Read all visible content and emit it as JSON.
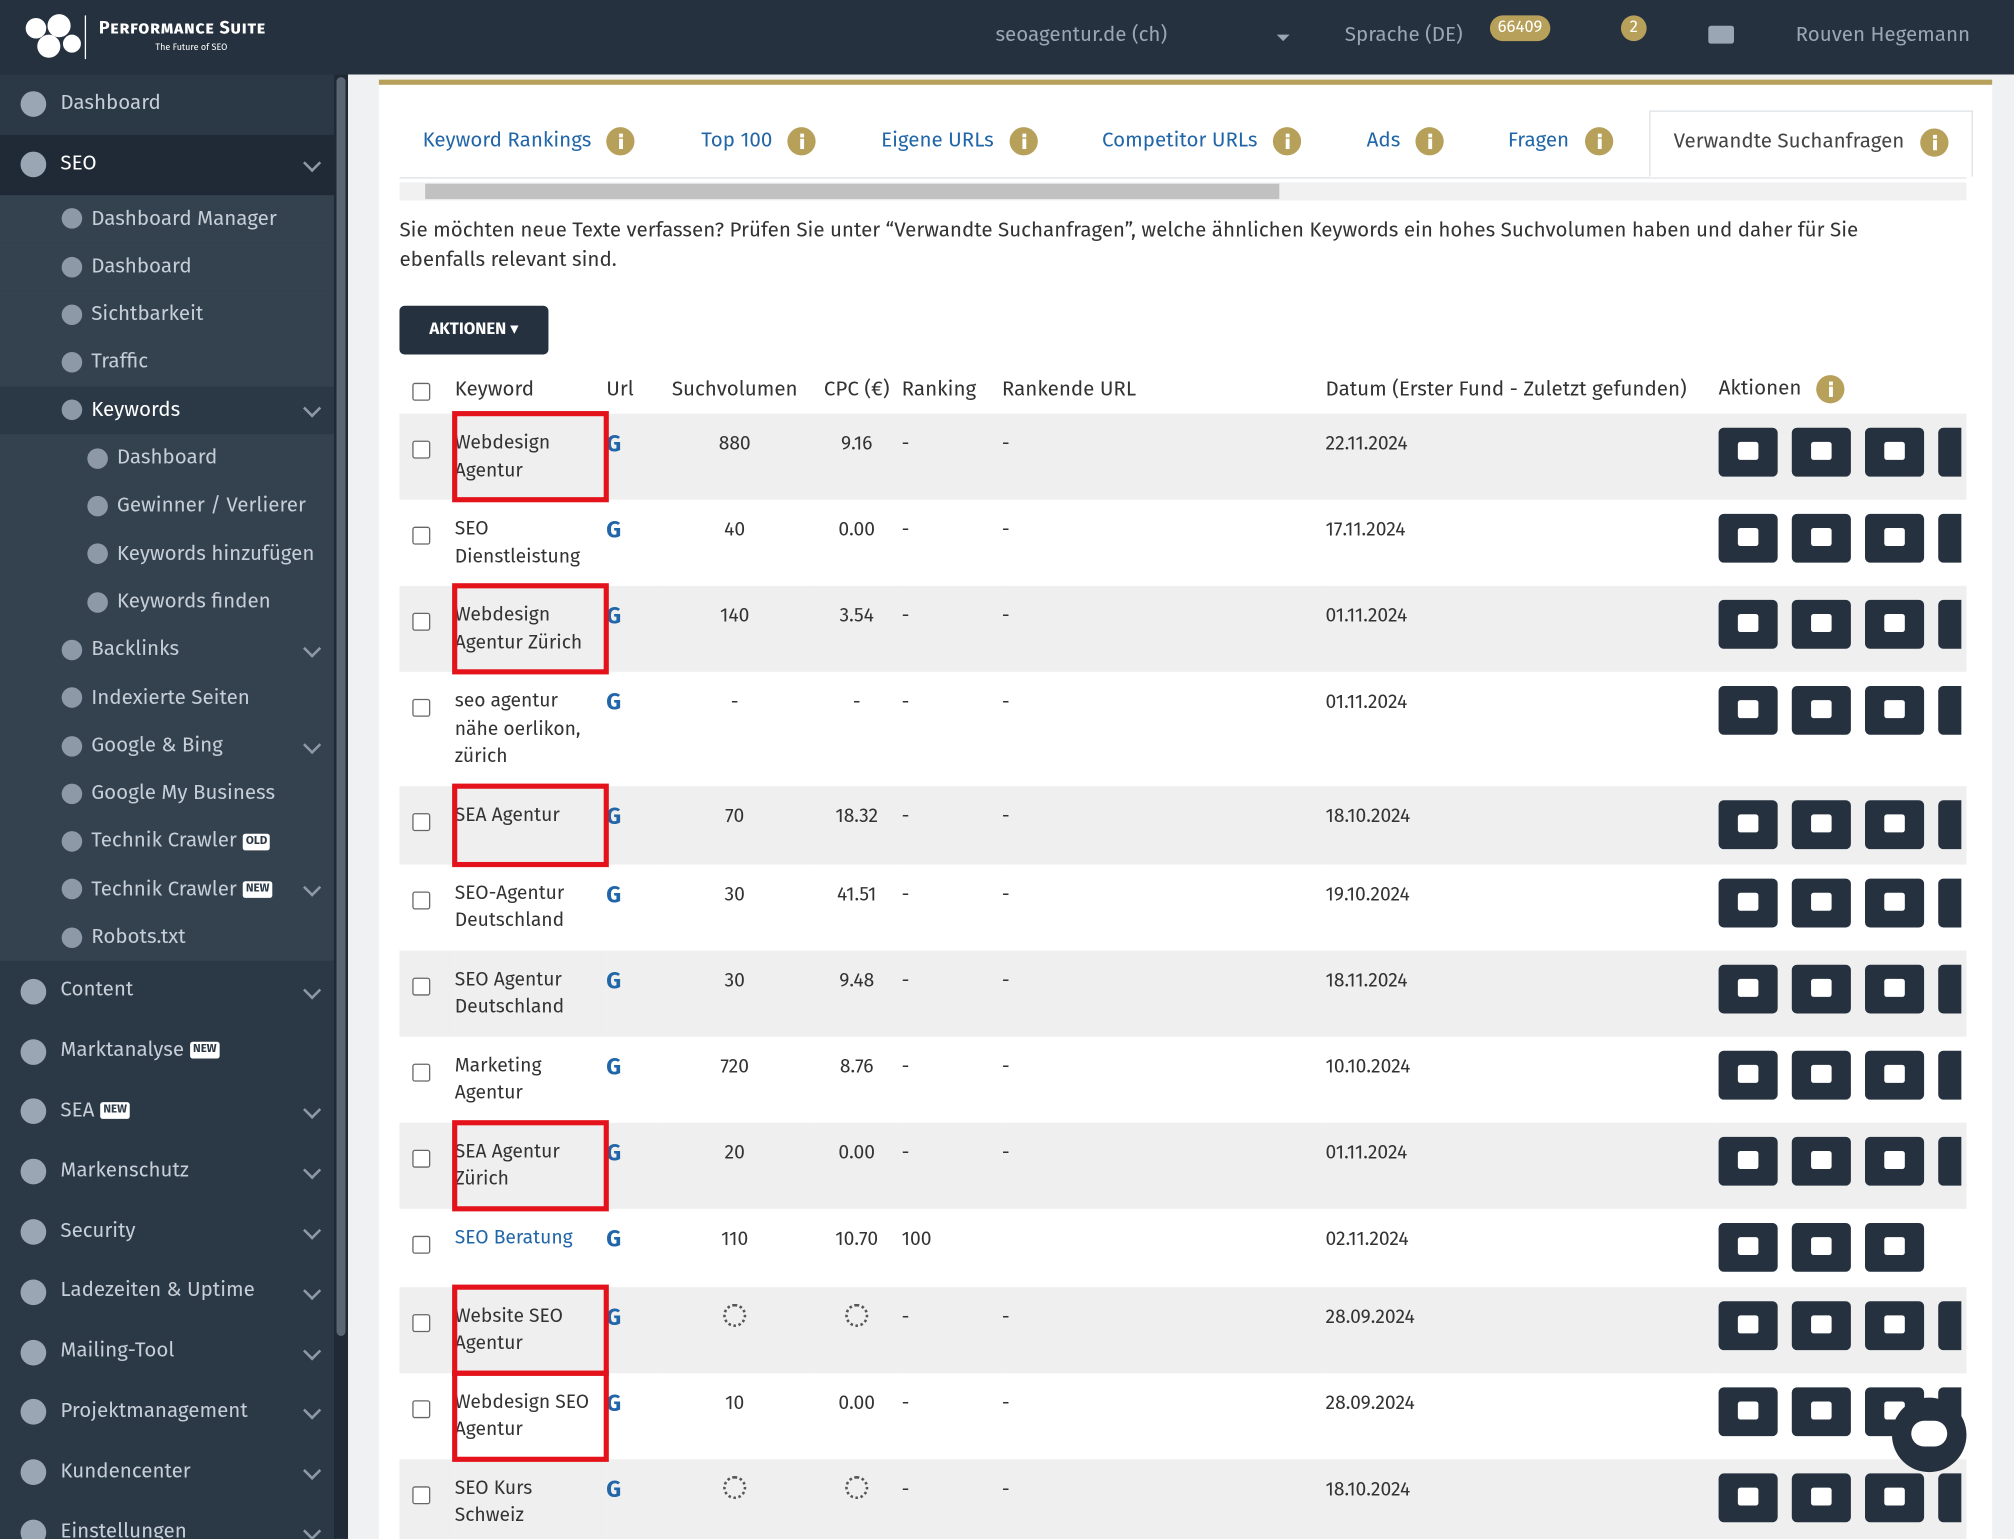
{
  "header": {
    "brand": "Performance Suite",
    "tagline": "The Future of SEO",
    "project": "seoagentur.de (ch)",
    "language": "Sprache (DE)",
    "credits": "66409",
    "notifications": "2",
    "user": "Rouven Hegemann"
  },
  "sidebar": [
    {
      "label": "Dashboard",
      "level": 0
    },
    {
      "label": "SEO",
      "level": 0,
      "open": true,
      "chevron": true
    },
    {
      "label": "Dashboard Manager",
      "level": 1
    },
    {
      "label": "Dashboard",
      "level": 1
    },
    {
      "label": "Sichtbarkeit",
      "level": 1
    },
    {
      "label": "Traffic",
      "level": 1
    },
    {
      "label": "Keywords",
      "level": 1,
      "active": true,
      "chevron": true
    },
    {
      "label": "Dashboard",
      "level": 2
    },
    {
      "label": "Gewinner / Verlierer",
      "level": 2
    },
    {
      "label": "Keywords hinzufügen",
      "level": 2
    },
    {
      "label": "Keywords finden",
      "level": 2
    },
    {
      "label": "Backlinks",
      "level": 1,
      "chevron": true
    },
    {
      "label": "Indexierte Seiten",
      "level": 1
    },
    {
      "label": "Google & Bing",
      "level": 1,
      "chevron": true
    },
    {
      "label": "Google My Business",
      "level": 1
    },
    {
      "label": "Technik Crawler",
      "level": 1,
      "badge": "OLD"
    },
    {
      "label": "Technik Crawler",
      "level": 1,
      "badge": "NEW",
      "chevron": true
    },
    {
      "label": "Robots.txt",
      "level": 1
    },
    {
      "label": "Content",
      "level": 0,
      "chevron": true
    },
    {
      "label": "Marktanalyse",
      "level": 0,
      "badge": "NEW"
    },
    {
      "label": "SEA",
      "level": 0,
      "badge": "NEW",
      "chevron": true
    },
    {
      "label": "Markenschutz",
      "level": 0,
      "chevron": true
    },
    {
      "label": "Security",
      "level": 0,
      "chevron": true
    },
    {
      "label": "Ladezeiten & Uptime",
      "level": 0,
      "chevron": true
    },
    {
      "label": "Mailing-Tool",
      "level": 0,
      "chevron": true
    },
    {
      "label": "Projektmanagement",
      "level": 0,
      "chevron": true
    },
    {
      "label": "Kundencenter",
      "level": 0,
      "chevron": true
    },
    {
      "label": "Einstellungen",
      "level": 0,
      "chevron": true
    }
  ],
  "tabs": [
    {
      "label": "Keyword Rankings"
    },
    {
      "label": "Top 100"
    },
    {
      "label": "Eigene URLs"
    },
    {
      "label": "Competitor URLs"
    },
    {
      "label": "Ads"
    },
    {
      "label": "Fragen"
    },
    {
      "label": "Verwandte Suchanfragen",
      "active": true
    }
  ],
  "description": "Sie möchten neue Texte verfassen? Prüfen Sie unter “Verwandte Suchanfragen”, welche ähnlichen Keywords ein hohes Suchvolumen haben und daher für Sie ebenfalls relevant sind.",
  "actions_button": "AKTIONEN",
  "table": {
    "columns": [
      "Keyword",
      "Url",
      "Suchvolumen",
      "CPC (€)",
      "Ranking",
      "Rankende URL",
      "Datum (Erster Fund - Zuletzt gefunden)",
      "Aktionen"
    ],
    "rows": [
      {
        "keyword": "Webdesign Agentur",
        "volume": "880",
        "cpc": "9.16",
        "ranking": "-",
        "url": "-",
        "date": "22.11.2024",
        "highlighted": true
      },
      {
        "keyword": "SEO Dienstleistung",
        "volume": "40",
        "cpc": "0.00",
        "ranking": "-",
        "url": "-",
        "date": "17.11.2024"
      },
      {
        "keyword": "Webdesign Agentur Zürich",
        "volume": "140",
        "cpc": "3.54",
        "ranking": "-",
        "url": "-",
        "date": "01.11.2024",
        "highlighted": true
      },
      {
        "keyword": "seo agentur nähe oerlikon, zürich",
        "volume": "-",
        "cpc": "-",
        "ranking": "-",
        "url": "-",
        "date": "01.11.2024"
      },
      {
        "keyword": "SEA Agentur",
        "volume": "70",
        "cpc": "18.32",
        "ranking": "-",
        "url": "-",
        "date": "18.10.2024",
        "highlighted": true
      },
      {
        "keyword": "SEO-Agentur Deutschland",
        "volume": "30",
        "cpc": "41.51",
        "ranking": "-",
        "url": "-",
        "date": "19.10.2024"
      },
      {
        "keyword": "SEO Agentur Deutschland",
        "volume": "30",
        "cpc": "9.48",
        "ranking": "-",
        "url": "-",
        "date": "18.11.2024"
      },
      {
        "keyword": "Marketing Agentur",
        "volume": "720",
        "cpc": "8.76",
        "ranking": "-",
        "url": "-",
        "date": "10.10.2024"
      },
      {
        "keyword": "SEA Agentur Zürich",
        "volume": "20",
        "cpc": "0.00",
        "ranking": "-",
        "url": "-",
        "date": "01.11.2024",
        "highlighted": true
      },
      {
        "keyword": "SEO Beratung",
        "link": true,
        "volume": "110",
        "cpc": "10.70",
        "ranking": "100",
        "url": null,
        "date": "02.11.2024"
      },
      {
        "keyword": "Website SEO Agentur",
        "volume": null,
        "cpc": null,
        "ranking": "-",
        "url": "-",
        "date": "28.09.2024",
        "highlighted": true
      },
      {
        "keyword": "Webdesign SEO Agentur",
        "volume": "10",
        "cpc": "0.00",
        "ranking": "-",
        "url": "-",
        "date": "28.09.2024",
        "highlighted": true
      },
      {
        "keyword": "SEO Kurs Schweiz",
        "volume": null,
        "cpc": null,
        "ranking": "-",
        "url": "-",
        "date": "18.10.2024"
      }
    ]
  }
}
